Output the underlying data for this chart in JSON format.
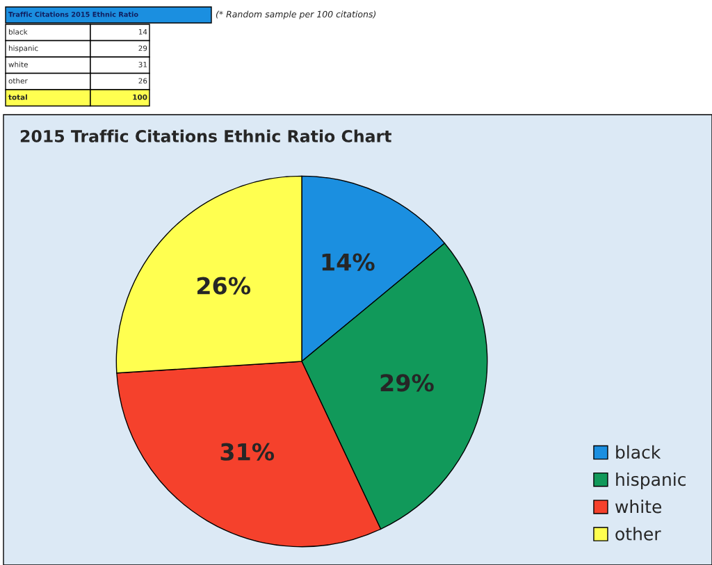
{
  "chart_data": {
    "type": "pie",
    "title": "2015 Traffic Citations Ethnic Ratio Chart",
    "categories": [
      "black",
      "hispanic",
      "white",
      "other"
    ],
    "values": [
      14,
      29,
      31,
      26
    ],
    "colors": [
      "#1b8fe0",
      "#11995a",
      "#f5412c",
      "#ffff50"
    ],
    "value_labels": [
      "14%",
      "29%",
      "31%",
      "26%"
    ],
    "annotations": [
      "Traffic Citations 2015 Ethnic Ratio",
      "(* Random sample per 100 citations)",
      "14",
      "29",
      "31",
      "26",
      "total",
      "100"
    ],
    "legend": "bottom right"
  }
}
